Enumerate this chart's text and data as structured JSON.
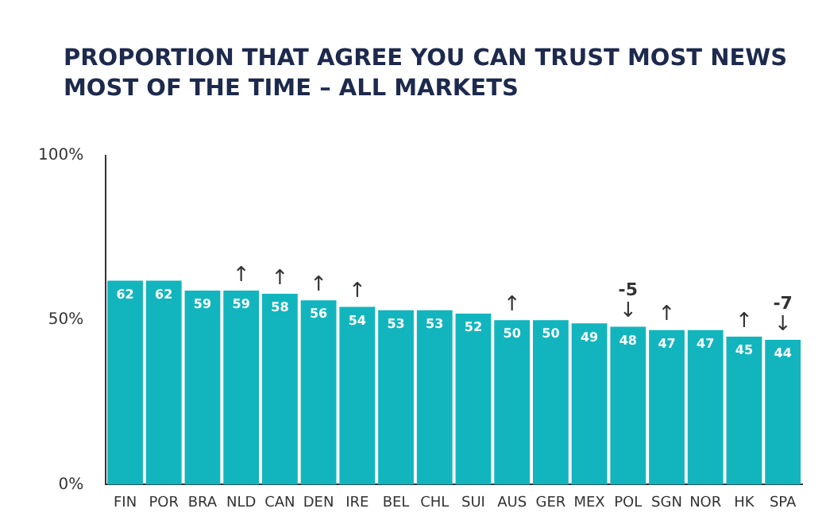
{
  "chart_data": {
    "type": "bar",
    "title": "PROPORTION THAT AGREE YOU CAN TRUST MOST NEWS MOST OF THE TIME – ALL MARKETS",
    "categories": [
      "FIN",
      "POR",
      "BRA",
      "NLD",
      "CAN",
      "DEN",
      "IRE",
      "BEL",
      "CHL",
      "SUI",
      "AUS",
      "GER",
      "MEX",
      "POL",
      "SGN",
      "NOR",
      "HK",
      "SPA"
    ],
    "values": [
      62,
      62,
      59,
      59,
      58,
      56,
      54,
      53,
      53,
      52,
      50,
      50,
      49,
      48,
      47,
      47,
      45,
      44
    ],
    "color": "#12b5bd",
    "ylim": [
      0,
      100
    ],
    "yticks": [
      {
        "value": 0,
        "label": "0%"
      },
      {
        "value": 50,
        "label": "50%"
      },
      {
        "value": 100,
        "label": "100%"
      }
    ],
    "data_labels": true,
    "annotations": [
      {
        "text": "↑",
        "x": "NLD",
        "y": 59
      },
      {
        "text": "↑",
        "x": "CAN",
        "y": 58
      },
      {
        "text": "↑",
        "x": "DEN",
        "y": 56
      },
      {
        "text": "↑",
        "x": "IRE",
        "y": 54
      },
      {
        "text": "↑",
        "x": "AUS",
        "y": 50
      },
      {
        "text": "↓",
        "x": "POL",
        "y": 48
      },
      {
        "text": "-5",
        "x": "POL",
        "y": 48
      },
      {
        "text": "↑",
        "x": "SGN",
        "y": 47
      },
      {
        "text": "↑",
        "x": "HK",
        "y": 45
      },
      {
        "text": "↓",
        "x": "SPA",
        "y": 44
      },
      {
        "text": "-7",
        "x": "SPA",
        "y": 44
      }
    ]
  }
}
